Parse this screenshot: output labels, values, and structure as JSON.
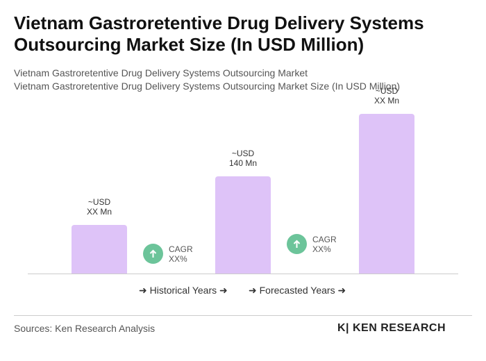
{
  "chart_data": {
    "type": "bar",
    "title": "Vietnam Gastroretentive Drug Delivery Systems Outsourcing Market Size (In USD Million)",
    "subtitles": [
      "Vietnam Gastroretentive Drug Delivery Systems Outsourcing Market",
      "Vietnam Gastroretentive Drug Delivery Systems Outsourcing Market Size (In USD Million)"
    ],
    "categories": [
      null,
      null,
      null
    ],
    "values": [
      70,
      140,
      230
    ],
    "value_labels": [
      "~USD\nXX Mn",
      "~USD\n140 Mn",
      "~USD\nXX Mn"
    ],
    "color": "#dec3f8",
    "annotations": [
      "CAGR\nXX%",
      "CAGR\nXX%"
    ],
    "legend": [
      "Historical Years",
      "Forecasted Years"
    ],
    "source": "Sources: Ken Research Analysis",
    "logo": "KEN RESEARCH"
  }
}
